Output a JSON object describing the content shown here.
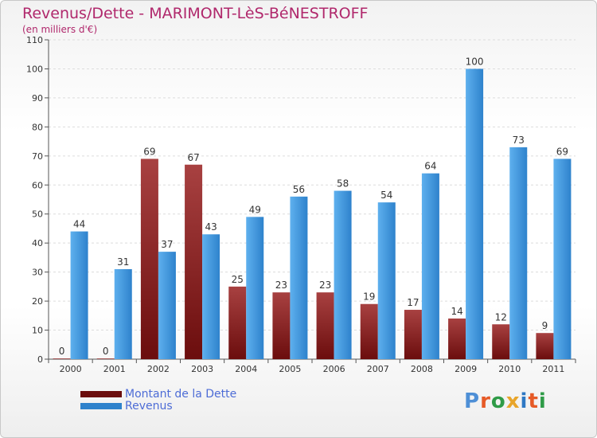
{
  "title": "Revenus/Dette - MARIMONT-LèS-BéNESTROFF",
  "subtitle": "(en milliers d'€)",
  "logo": {
    "text": "Proxiti",
    "colors": [
      "#4e8fd6",
      "#e65a27",
      "#2f9b47",
      "#e8a52b",
      "#2e78c4",
      "#e65a27",
      "#2f9b47"
    ]
  },
  "colors": {
    "dette": "#6b0d0d",
    "dette_light": "#a84141",
    "revenus": "#2e82cc",
    "revenus_light": "#5eb0ee"
  },
  "chart_data": {
    "type": "bar",
    "categories": [
      "2000",
      "2001",
      "2002",
      "2003",
      "2004",
      "2005",
      "2006",
      "2007",
      "2008",
      "2009",
      "2010",
      "2011"
    ],
    "series": [
      {
        "name": "Montant de la Dette",
        "values": [
          0,
          0,
          69,
          67,
          25,
          23,
          23,
          19,
          17,
          14,
          12,
          9
        ]
      },
      {
        "name": "Revenus",
        "values": [
          44,
          31,
          37,
          43,
          49,
          56,
          58,
          54,
          64,
          100,
          73,
          69
        ]
      }
    ],
    "ylim": [
      0,
      110
    ],
    "yticks": [
      0,
      10,
      20,
      30,
      40,
      50,
      60,
      70,
      80,
      90,
      100,
      110
    ],
    "grid": true,
    "legend": "bottom-left",
    "xlabel": "",
    "ylabel": ""
  }
}
